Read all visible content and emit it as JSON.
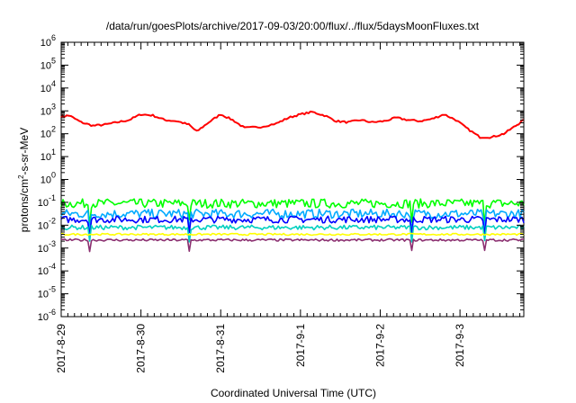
{
  "chart_data": {
    "type": "line",
    "title": "/data/run/goesPlots/archive/2017-09-03/20:00/flux/../flux/5daysMoonFluxes.txt",
    "xlabel": "Coordinated Universal Time (UTC)",
    "ylabel": {
      "base": "protons/cm",
      "sup": "2",
      "rest": "-s-sr-MeV"
    },
    "yscale": "log",
    "ylim": [
      -6,
      6
    ],
    "xlim": [
      0,
      5.8
    ],
    "x_tick_labels": [
      "2017-8-29",
      "2017-8-30",
      "2017-8-31",
      "2017-9-1",
      "2017-9-2",
      "2017-9-3"
    ],
    "y_ticks": [
      {
        "base": "10",
        "exp": "6"
      },
      {
        "base": "10",
        "exp": "5"
      },
      {
        "base": "10",
        "exp": "4"
      },
      {
        "base": "10",
        "exp": "3"
      },
      {
        "base": "10",
        "exp": "2"
      },
      {
        "base": "10",
        "exp": "1"
      },
      {
        "base": "10",
        "exp": "0"
      },
      {
        "base": "10",
        "exp": "-1"
      },
      {
        "base": "10",
        "exp": "-2"
      },
      {
        "base": "10",
        "exp": "-3"
      },
      {
        "base": "10",
        "exp": "-4"
      },
      {
        "base": "10",
        "exp": "-5"
      },
      {
        "base": "10",
        "exp": "-6"
      }
    ],
    "grid": false,
    "legend": "none",
    "series": [
      {
        "color": "#ff0000",
        "x": [
          0,
          0.1,
          0.25,
          0.4,
          0.55,
          0.7,
          0.85,
          1.0,
          1.15,
          1.3,
          1.45,
          1.6,
          1.7,
          1.85,
          2.0,
          2.15,
          2.3,
          2.5,
          2.7,
          2.85,
          3.0,
          3.15,
          3.3,
          3.45,
          3.6,
          3.75,
          3.9,
          4.05,
          4.2,
          4.35,
          4.5,
          4.65,
          4.8,
          4.95,
          5.1,
          5.25,
          5.4,
          5.55,
          5.7,
          5.8
        ],
        "logy": [
          2.75,
          2.8,
          2.5,
          2.35,
          2.4,
          2.5,
          2.6,
          2.85,
          2.8,
          2.6,
          2.55,
          2.4,
          2.1,
          2.5,
          2.85,
          2.6,
          2.25,
          2.3,
          2.45,
          2.7,
          2.85,
          2.95,
          2.8,
          2.55,
          2.5,
          2.6,
          2.5,
          2.55,
          2.7,
          2.6,
          2.55,
          2.65,
          2.85,
          2.6,
          2.2,
          1.85,
          1.85,
          2.0,
          2.35,
          2.6
        ]
      },
      {
        "color": "#00ff00",
        "mean_logy": -1.05,
        "noise": 0.2,
        "dip": 0.75
      },
      {
        "color": "#00aaff",
        "mean_logy": -1.5,
        "noise": 0.2,
        "dip": 0.8
      },
      {
        "color": "#0000ff",
        "mean_logy": -1.75,
        "noise": 0.15,
        "dip": 0.7
      },
      {
        "color": "#00d0c0",
        "mean_logy": -2.1,
        "noise": 0.1,
        "dip": 0.55
      },
      {
        "color": "#ffff00",
        "mean_logy": -2.4,
        "noise": 0.04,
        "dip": 0.0
      },
      {
        "color": "#8b2f70",
        "mean_logy": -2.65,
        "noise": 0.05,
        "dip": 0.5
      }
    ],
    "dip_x": [
      0.35,
      1.6,
      4.4,
      5.3
    ]
  }
}
